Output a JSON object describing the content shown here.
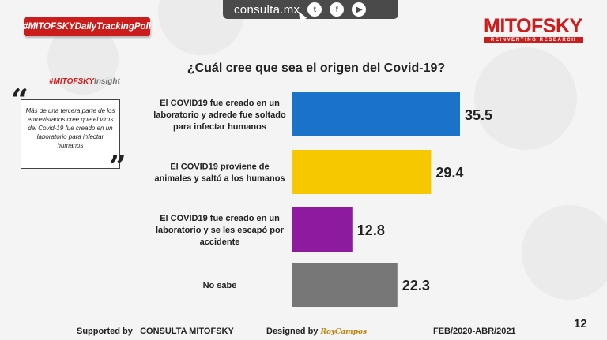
{
  "topbar": {
    "site": "consulta.mx",
    "social": [
      "twitter-icon",
      "facebook-icon",
      "youtube-icon"
    ]
  },
  "badge": "#MITOFSKYDailyTrackingPoll",
  "logo": {
    "brand": "MITOFSKY",
    "tagline": "REINVENTING RESEARCH"
  },
  "insight": {
    "head_red": "#MITOFSKY",
    "head_gray": "Insight",
    "text": "Más de una tercera parte de los entrevistados cree que el virus del Covid-19 fue creado en un laboratorio para infectar humanos"
  },
  "chart_data": {
    "type": "bar",
    "orientation": "horizontal",
    "title": "¿Cuál cree que sea el origen del Covid-19?",
    "categories": [
      [
        "El COVID19 fue creado en un",
        "laboratorio y adrede fue soltado",
        "para infectar humanos"
      ],
      [
        "El COVID19 proviene de",
        "animales  y saltó a los humanos"
      ],
      [
        "El COVID19 fue creado en un",
        "laboratorio y se les escapó por",
        "accidente"
      ],
      [
        "No sabe"
      ]
    ],
    "values": [
      35.5,
      29.4,
      12.8,
      22.3
    ],
    "value_labels": [
      "35.5",
      "29.4",
      "12.8",
      "22.3"
    ],
    "colors": [
      "#1a73c8",
      "#f5c800",
      "#8e1aa0",
      "#777777"
    ],
    "xlim": [
      0,
      40
    ]
  },
  "footer": {
    "supported_by": "Supported by",
    "supporter": "CONSULTA   MITOFSKY",
    "designed_by": "Designed by",
    "designer": "RoyCampos",
    "date_range": "FEB/2020-ABR/2021",
    "page": "12"
  }
}
